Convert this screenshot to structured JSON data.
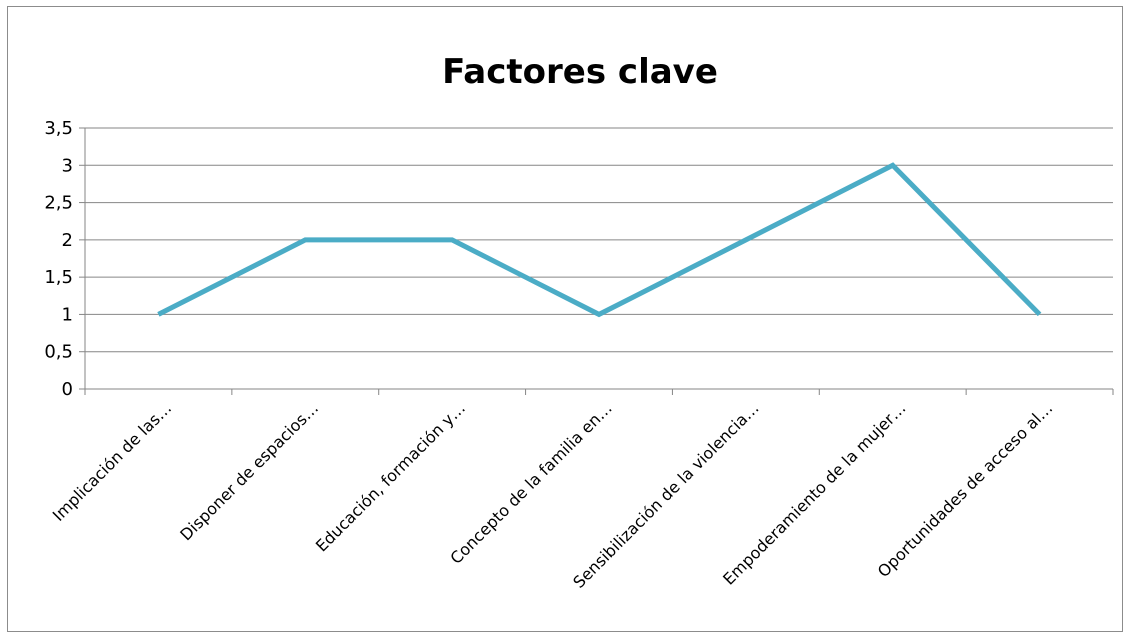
{
  "chart_data": {
    "type": "line",
    "title": "Factores clave",
    "categories": [
      "Implicación de las…",
      "Disponer de espacios…",
      "Educación, formación y…",
      "Concepto de la familia en…",
      "Sensibilización de la violencia…",
      "Empoderamiento de la mujer…",
      "Oportunidades de acceso al…"
    ],
    "series": [
      {
        "values": [
          1,
          2,
          2,
          1,
          2,
          3,
          1
        ],
        "color": "#4BACC6"
      }
    ],
    "ylim": [
      0,
      3.5
    ],
    "yticks": [
      "0",
      "0,5",
      "1",
      "1,5",
      "2",
      "2,5",
      "3",
      "3,5"
    ],
    "xlabel": "",
    "ylabel": "",
    "grid": true,
    "legend": "none"
  }
}
